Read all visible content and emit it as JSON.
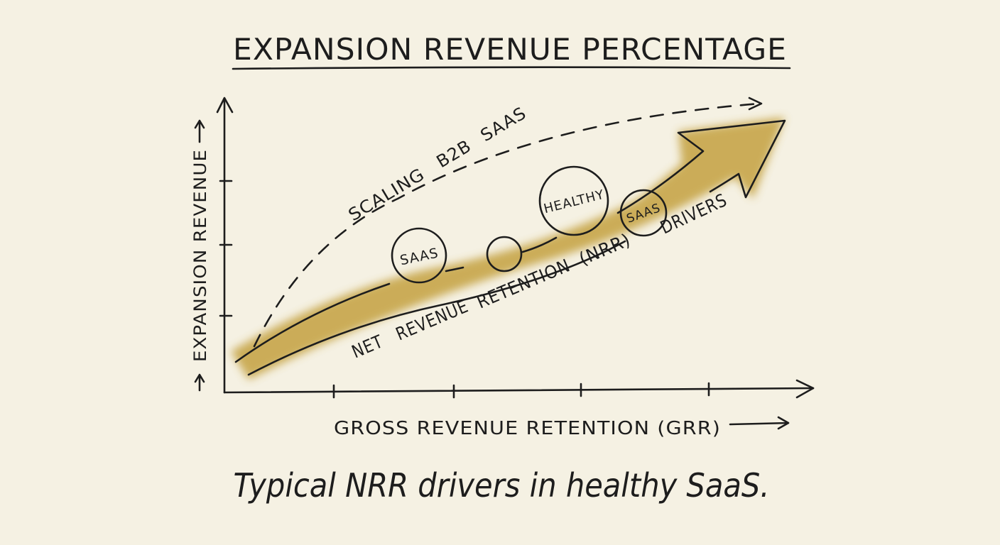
{
  "title": "EXPANSION REVENUE PERCENTAGE",
  "y_axis_label": "EXPANSION REVENUE",
  "x_axis_label": "GROSS REVENUE RETENTION (GRR)",
  "dashed_curve_label": "SCALING B2B SAAS",
  "arrow_label": "NET REVENUE RETENTION (NRR) DRIVERS",
  "bubbles": [
    "SAAS",
    "",
    "HEALTHY",
    "SAAS"
  ],
  "caption": "Typical NRR drivers in healthy SaaS.",
  "colors": {
    "background": "#f5f1e3",
    "accent": "#c4a140",
    "ink": "#1d1d1d"
  }
}
